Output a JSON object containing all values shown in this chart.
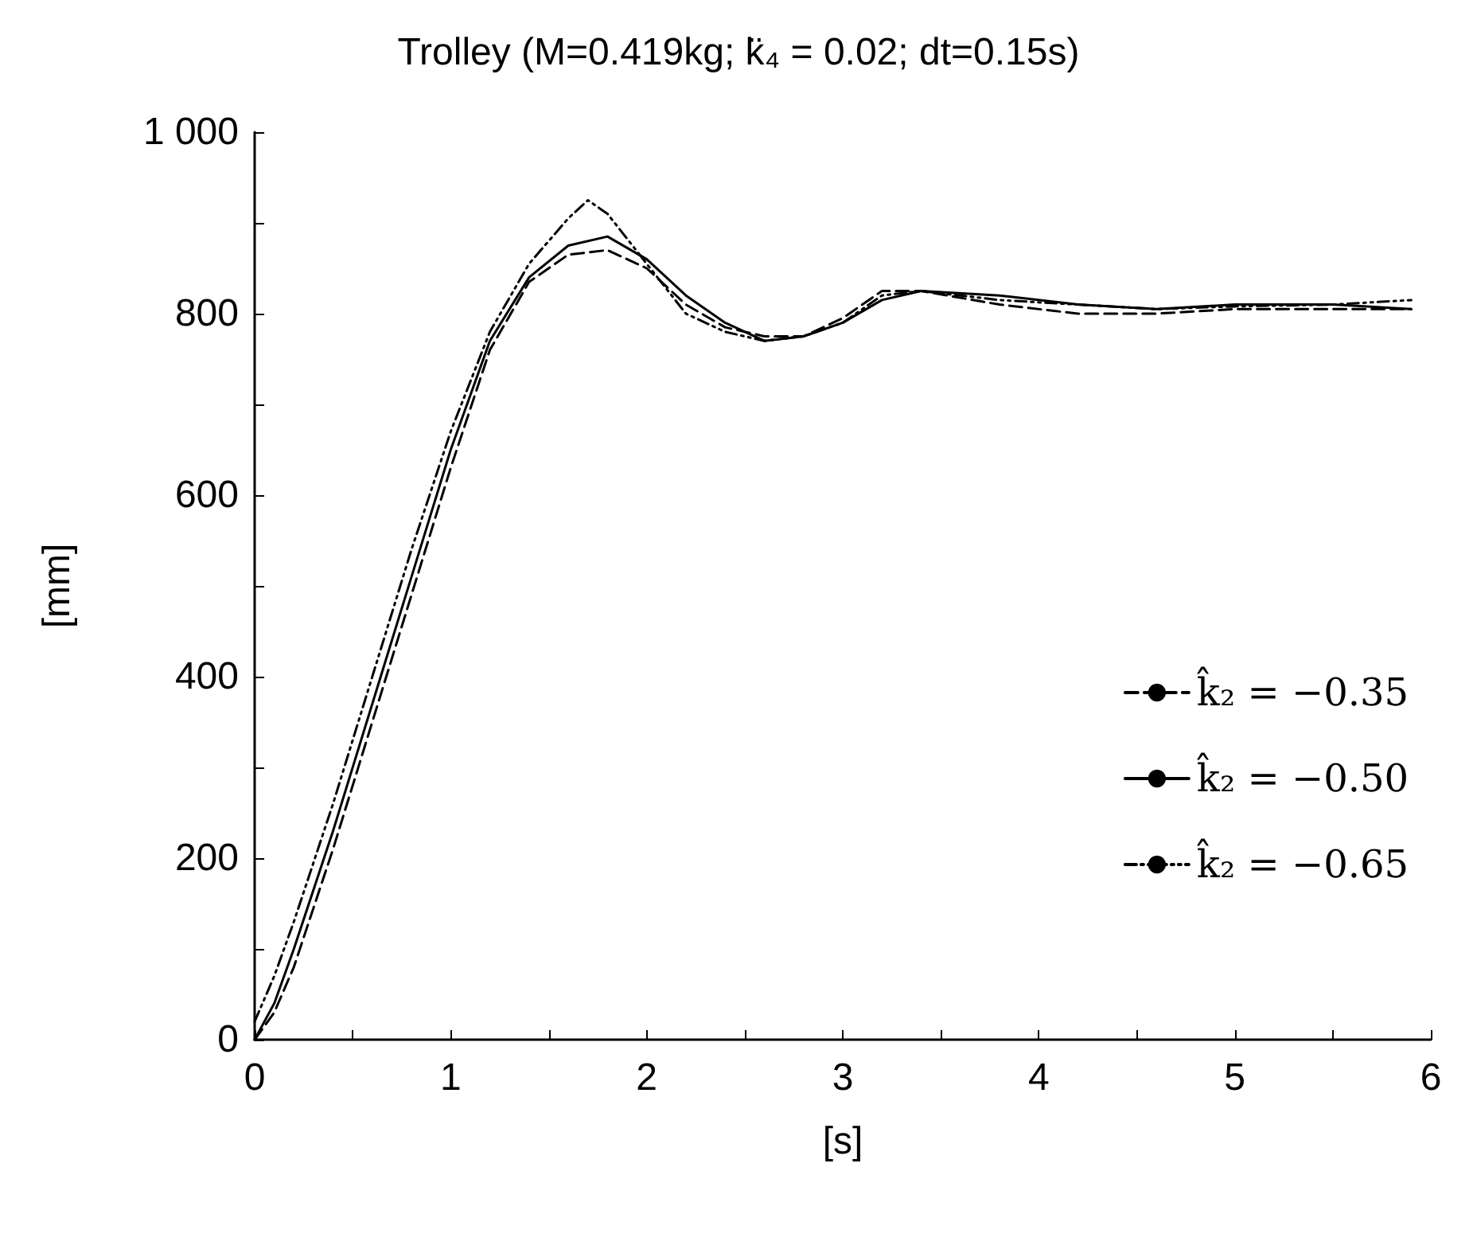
{
  "chart_data": {
    "type": "line",
    "title": "Trolley (M=0.419kg; k̈₄ = 0.02; dt=0.15s)",
    "xlabel": "[s]",
    "ylabel": "[mm]",
    "xlim": [
      0,
      6
    ],
    "xticks": [
      0,
      {
        "value": 0.5,
        "label": null
      },
      1,
      {
        "value": 1.5,
        "label": null
      },
      2,
      {
        "value": 2.5,
        "label": null
      },
      3,
      {
        "value": 3.5,
        "label": null
      },
      4,
      {
        "value": 4.5,
        "label": null
      },
      5,
      {
        "value": 5.5,
        "label": null
      },
      6
    ],
    "ylim": [
      0,
      1000
    ],
    "yticks": [
      0,
      {
        "value": 100,
        "label": null
      },
      200,
      {
        "value": 300,
        "label": null
      },
      400,
      {
        "value": 500,
        "label": null
      },
      600,
      {
        "value": 700,
        "label": null
      },
      800,
      {
        "value": 900,
        "label": null
      },
      {
        "value": 1000,
        "label": "1 000"
      }
    ],
    "grid": false,
    "legend": "right",
    "marker": "none",
    "series": [
      {
        "name": "k̂₂ = −0.35",
        "color": "#000000",
        "line_style": "dashed",
        "x": [
          0,
          0.1,
          0.2,
          0.4,
          0.6,
          0.8,
          1.0,
          1.2,
          1.4,
          1.6,
          1.8,
          2.0,
          2.2,
          2.4,
          2.6,
          2.8,
          3.0,
          3.2,
          3.4,
          3.8,
          4.2,
          4.6,
          5.0,
          5.5,
          5.9
        ],
        "values": [
          0,
          30,
          80,
          210,
          350,
          490,
          630,
          760,
          835,
          865,
          870,
          850,
          810,
          785,
          775,
          775,
          795,
          825,
          825,
          810,
          800,
          800,
          805,
          805,
          805
        ]
      },
      {
        "name": "k̂₂ = −0.50",
        "color": "#000000",
        "line_style": "solid",
        "x": [
          0,
          0.1,
          0.2,
          0.4,
          0.6,
          0.8,
          1.0,
          1.2,
          1.4,
          1.6,
          1.8,
          2.0,
          2.2,
          2.4,
          2.6,
          2.8,
          3.0,
          3.2,
          3.4,
          3.8,
          4.2,
          4.6,
          5.0,
          5.5,
          5.9
        ],
        "values": [
          0,
          40,
          100,
          230,
          370,
          510,
          650,
          770,
          840,
          875,
          885,
          860,
          820,
          790,
          770,
          775,
          790,
          815,
          825,
          820,
          810,
          805,
          810,
          810,
          805
        ]
      },
      {
        "name": "k̂₂ = −0.65",
        "color": "#000000",
        "line_style": "dotted",
        "x": [
          0,
          0.1,
          0.2,
          0.4,
          0.6,
          0.8,
          1.0,
          1.2,
          1.4,
          1.6,
          1.7,
          1.8,
          2.0,
          2.2,
          2.4,
          2.6,
          2.8,
          3.0,
          3.2,
          3.4,
          3.8,
          4.2,
          4.6,
          5.0,
          5.5,
          5.9
        ],
        "values": [
          20,
          70,
          130,
          260,
          400,
          540,
          670,
          780,
          855,
          905,
          925,
          910,
          855,
          800,
          780,
          770,
          775,
          790,
          820,
          825,
          815,
          810,
          805,
          808,
          810,
          815
        ]
      }
    ]
  }
}
